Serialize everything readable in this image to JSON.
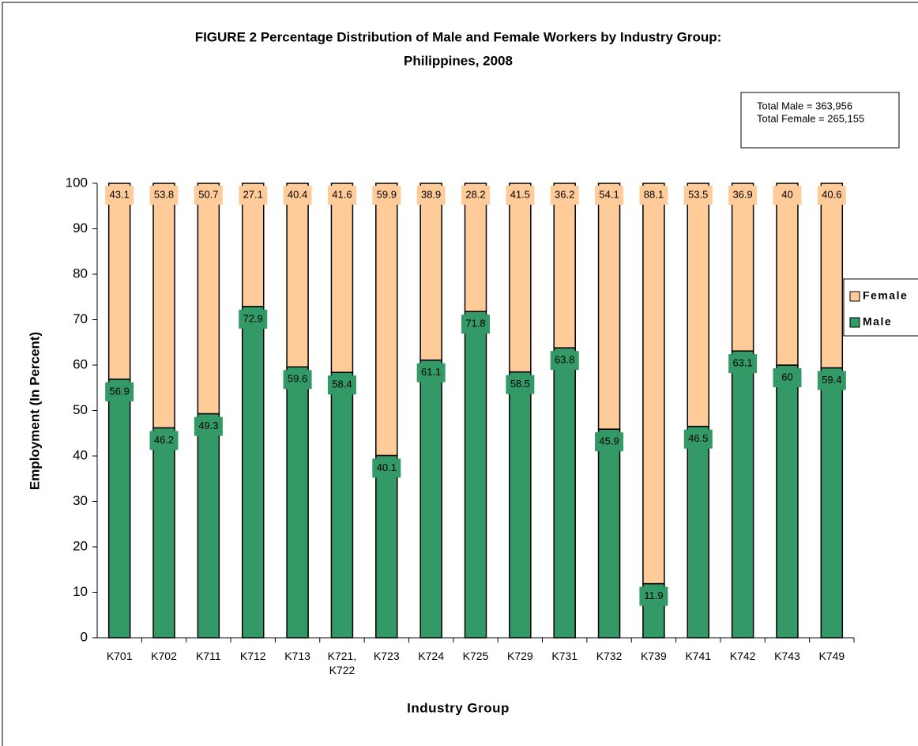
{
  "chart_data": {
    "type": "stacked_bar",
    "title": [
      "FIGURE 2  Percentage Distribution of Male and Female Workers by Industry Group:",
      "Philippines, 2008"
    ],
    "annotations": [
      "Total Male = 363,956",
      "Total Female = 265,155"
    ],
    "x_label": "Industry Group",
    "y_label": "Employment (In Percent)",
    "categories": [
      "K701",
      "K702",
      "K711",
      "K712",
      "K713",
      "K721, K722",
      "K723",
      "K724",
      "K725",
      "K729",
      "K731",
      "K732",
      "K739",
      "K741",
      "K742",
      "K743",
      "K749"
    ],
    "series": [
      {
        "name": "Male",
        "color": "#339966",
        "values": [
          56.9,
          46.2,
          49.3,
          72.9,
          59.6,
          58.4,
          40.1,
          61.1,
          71.8,
          58.5,
          63.8,
          45.9,
          11.9,
          46.5,
          63.1,
          60,
          59.4
        ]
      },
      {
        "name": "Female",
        "color": "#ffcc99",
        "values": [
          43.1,
          53.8,
          50.7,
          27.1,
          40.4,
          41.6,
          59.9,
          38.9,
          28.2,
          41.5,
          36.2,
          54.1,
          88.1,
          53.5,
          36.9,
          40,
          40.6
        ]
      }
    ],
    "ylim": [
      0,
      100
    ],
    "yticks": [
      0,
      10,
      20,
      30,
      40,
      50,
      60,
      70,
      80,
      90,
      100
    ],
    "legend": "right"
  }
}
